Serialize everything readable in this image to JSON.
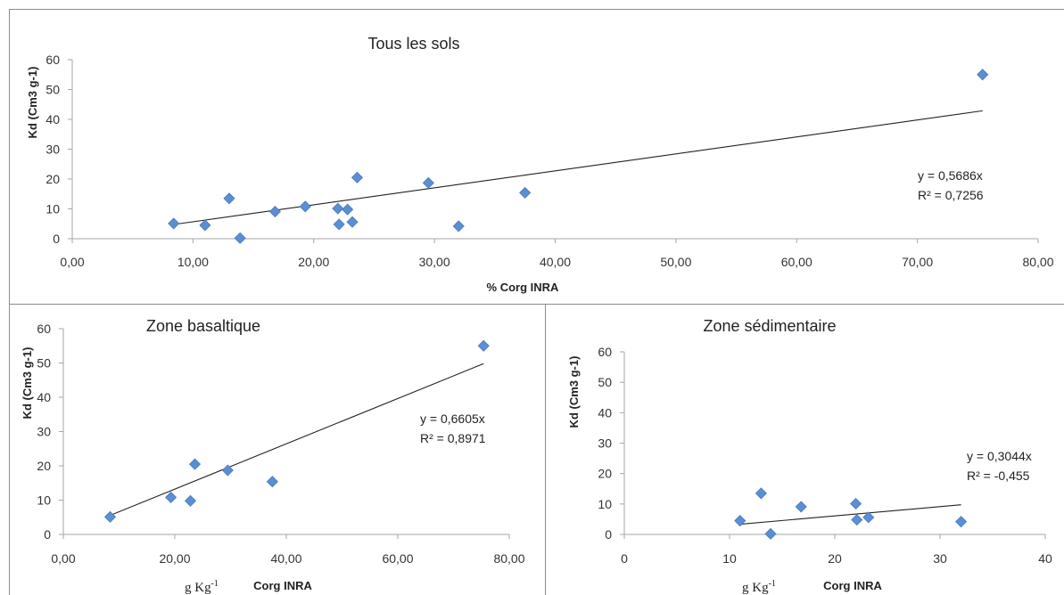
{
  "colors": {
    "marker": "#5b8ed2",
    "marker_stroke": "#4a7bbf",
    "trendline": "#222222",
    "axis": "#a6a6a6"
  },
  "chart_data": [
    {
      "type": "scatter",
      "title": "Tous les sols",
      "xlabel": "% Corg INRA",
      "ylabel": "Kd (Cm3 g-1)",
      "xlim": [
        0,
        80
      ],
      "ylim": [
        0,
        60
      ],
      "x_ticks": [
        "0,00",
        "10,00",
        "20,00",
        "30,00",
        "40,00",
        "50,00",
        "60,00",
        "70,00",
        "80,00"
      ],
      "y_ticks": [
        "0",
        "10",
        "20",
        "30",
        "40",
        "50",
        "60"
      ],
      "points": [
        [
          8.4,
          5.1
        ],
        [
          11.0,
          4.5
        ],
        [
          13.0,
          13.5
        ],
        [
          13.9,
          0.2
        ],
        [
          16.8,
          9.1
        ],
        [
          19.3,
          10.8
        ],
        [
          22.0,
          10.1
        ],
        [
          22.1,
          4.8
        ],
        [
          22.8,
          9.8
        ],
        [
          23.2,
          5.6
        ],
        [
          23.6,
          20.5
        ],
        [
          29.5,
          18.7
        ],
        [
          32.0,
          4.2
        ],
        [
          37.5,
          15.4
        ],
        [
          75.4,
          55.0
        ]
      ],
      "trendline": {
        "slope": 0.5686,
        "x_range": [
          8.4,
          75.4
        ]
      },
      "equation": "y = 0,5686x",
      "r2": "R² = 0,7256"
    },
    {
      "type": "scatter",
      "title": "Zone basaltique",
      "xlabel": "Corg INRA",
      "xlabel_unit": "g Kg",
      "xlabel_unit_sup": "-1",
      "ylabel": "Kd (Cm3 g-1)",
      "xlim": [
        0,
        80
      ],
      "ylim": [
        0,
        60
      ],
      "x_ticks": [
        "0,00",
        "20,00",
        "40,00",
        "60,00",
        "80,00"
      ],
      "y_ticks": [
        "0",
        "10",
        "20",
        "30",
        "40",
        "50",
        "60"
      ],
      "points": [
        [
          8.4,
          5.1
        ],
        [
          19.3,
          10.8
        ],
        [
          22.8,
          9.8
        ],
        [
          23.6,
          20.5
        ],
        [
          29.5,
          18.7
        ],
        [
          37.5,
          15.4
        ],
        [
          75.4,
          55.0
        ]
      ],
      "trendline": {
        "slope": 0.6605,
        "x_range": [
          8.4,
          75.4
        ]
      },
      "equation": "y = 0,6605x",
      "r2": "R² = 0,8971"
    },
    {
      "type": "scatter",
      "title": "Zone sédimentaire",
      "xlabel": "Corg INRA",
      "xlabel_unit": "g Kg",
      "xlabel_unit_sup": "-1",
      "ylabel": "Kd (Cm3 g-1)",
      "xlim": [
        0,
        40
      ],
      "ylim": [
        0,
        60
      ],
      "x_ticks": [
        "0",
        "10",
        "20",
        "30",
        "40"
      ],
      "y_ticks": [
        "0",
        "10",
        "20",
        "30",
        "40",
        "50",
        "60"
      ],
      "points": [
        [
          11.0,
          4.5
        ],
        [
          13.0,
          13.5
        ],
        [
          13.9,
          0.2
        ],
        [
          16.8,
          9.1
        ],
        [
          22.0,
          10.1
        ],
        [
          22.1,
          4.8
        ],
        [
          23.2,
          5.6
        ],
        [
          32.0,
          4.2
        ]
      ],
      "trendline": {
        "slope": 0.3044,
        "x_range": [
          11.0,
          32.0
        ]
      },
      "equation": "y = 0,3044x",
      "r2": "R² = -0,455"
    }
  ]
}
